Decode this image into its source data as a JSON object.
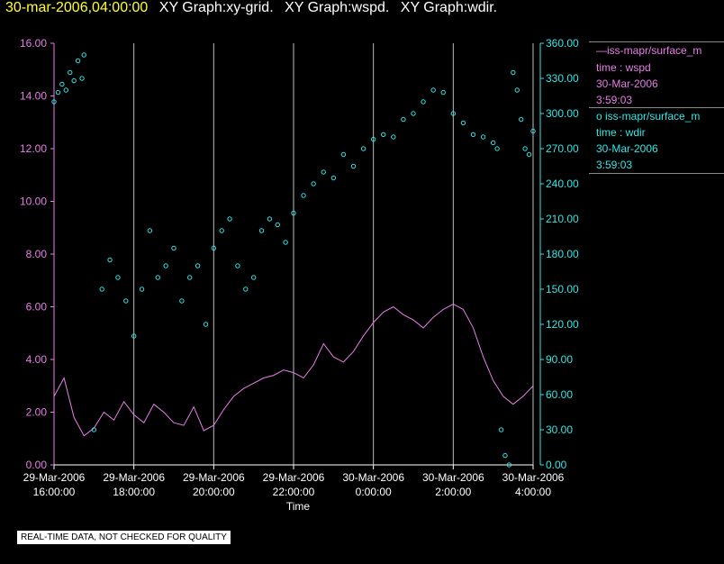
{
  "header": {
    "timestamp": "30-mar-2006,04:00:00",
    "graph_titles": [
      "XY Graph:xy-grid.",
      "XY Graph:wspd.",
      "XY Graph:wdir."
    ]
  },
  "legend": {
    "series1": {
      "name": "iss-mapr/surface_m",
      "line": "time : wspd",
      "date": "30-Mar-2006",
      "time": "3:59:03"
    },
    "series2": {
      "name": "iss-mapr/surface_m",
      "line": "time : wdir",
      "date": "30-Mar-2006",
      "time": "3:59:03"
    }
  },
  "quality_note": "REAL-TIME DATA, NOT CHECKED FOR QUALITY",
  "colors": {
    "wspd": "#e87ee8",
    "wdir": "#33e6e6",
    "grid": "#bbbbbb",
    "axis": "#ffffff"
  },
  "chart_data": {
    "type": "line",
    "xlabel": "Time",
    "x_range_hours": [
      0,
      12
    ],
    "x_ticks": [
      {
        "h": 0,
        "date": "29-Mar-2006",
        "time": "16:00:00"
      },
      {
        "h": 2,
        "date": "29-Mar-2006",
        "time": "18:00:00"
      },
      {
        "h": 4,
        "date": "29-Mar-2006",
        "time": "20:00:00"
      },
      {
        "h": 6,
        "date": "29-Mar-2006",
        "time": "22:00:00"
      },
      {
        "h": 8,
        "date": "30-Mar-2006",
        "time": "0:00:00"
      },
      {
        "h": 10,
        "date": "30-Mar-2006",
        "time": "2:00:00"
      },
      {
        "h": 12,
        "date": "30-Mar-2006",
        "time": "4:00:00"
      }
    ],
    "y_left": {
      "label": "wspd",
      "range": [
        0,
        16
      ],
      "ticks": [
        "0.00",
        "2.00",
        "4.00",
        "6.00",
        "8.00",
        "10.00",
        "12.00",
        "14.00",
        "16.00"
      ]
    },
    "y_right": {
      "label": "wdir",
      "range": [
        0,
        360
      ],
      "ticks": [
        "0.00",
        "30.00",
        "60.00",
        "90.00",
        "120.00",
        "150.00",
        "180.00",
        "210.00",
        "240.00",
        "270.00",
        "300.00",
        "330.00",
        "360.00"
      ]
    },
    "series": [
      {
        "name": "wspd",
        "style": "line",
        "axis": "left",
        "x": [
          0,
          0.25,
          0.5,
          0.75,
          1,
          1.25,
          1.5,
          1.75,
          2,
          2.25,
          2.5,
          2.75,
          3,
          3.25,
          3.5,
          3.75,
          4,
          4.25,
          4.5,
          4.75,
          5,
          5.25,
          5.5,
          5.75,
          6,
          6.25,
          6.5,
          6.75,
          7,
          7.25,
          7.5,
          7.75,
          8,
          8.25,
          8.5,
          8.75,
          9,
          9.25,
          9.5,
          9.75,
          10,
          10.25,
          10.5,
          10.75,
          11,
          11.25,
          11.5,
          11.75,
          12
        ],
        "y": [
          2.6,
          3.3,
          1.8,
          1.1,
          1.4,
          2.0,
          1.7,
          2.4,
          1.9,
          1.6,
          2.3,
          2.0,
          1.6,
          1.5,
          2.2,
          1.3,
          1.5,
          2.1,
          2.6,
          2.9,
          3.1,
          3.3,
          3.4,
          3.6,
          3.5,
          3.3,
          3.8,
          4.6,
          4.1,
          3.9,
          4.3,
          4.9,
          5.4,
          5.8,
          6.0,
          5.7,
          5.5,
          5.2,
          5.6,
          5.9,
          6.1,
          5.9,
          5.2,
          4.1,
          3.2,
          2.6,
          2.3,
          2.6,
          3.0
        ]
      },
      {
        "name": "wdir",
        "style": "points",
        "axis": "right",
        "x": [
          0,
          0.1,
          0.2,
          0.3,
          0.4,
          0.5,
          0.6,
          0.7,
          0.75,
          1.0,
          1.2,
          1.4,
          1.6,
          1.8,
          2.0,
          2.2,
          2.4,
          2.6,
          2.8,
          3.0,
          3.2,
          3.4,
          3.6,
          3.8,
          4.0,
          4.2,
          4.4,
          4.6,
          4.8,
          5.0,
          5.2,
          5.4,
          5.6,
          5.8,
          6.0,
          6.25,
          6.5,
          6.75,
          7.0,
          7.25,
          7.5,
          7.75,
          8.0,
          8.25,
          8.5,
          8.75,
          9.0,
          9.25,
          9.5,
          9.75,
          10.0,
          10.25,
          10.5,
          10.75,
          11.0,
          11.1,
          11.2,
          11.3,
          11.4,
          11.5,
          11.6,
          11.7,
          11.8,
          11.9,
          12.0
        ],
        "y": [
          310,
          318,
          325,
          320,
          335,
          328,
          345,
          330,
          350,
          30,
          150,
          175,
          160,
          140,
          110,
          150,
          200,
          160,
          170,
          185,
          140,
          160,
          170,
          120,
          185,
          200,
          210,
          170,
          150,
          160,
          200,
          210,
          205,
          190,
          215,
          230,
          240,
          250,
          245,
          265,
          255,
          270,
          278,
          282,
          280,
          295,
          300,
          310,
          320,
          318,
          300,
          292,
          282,
          280,
          275,
          270,
          30,
          8,
          0,
          335,
          320,
          295,
          270,
          265,
          285
        ]
      }
    ]
  }
}
